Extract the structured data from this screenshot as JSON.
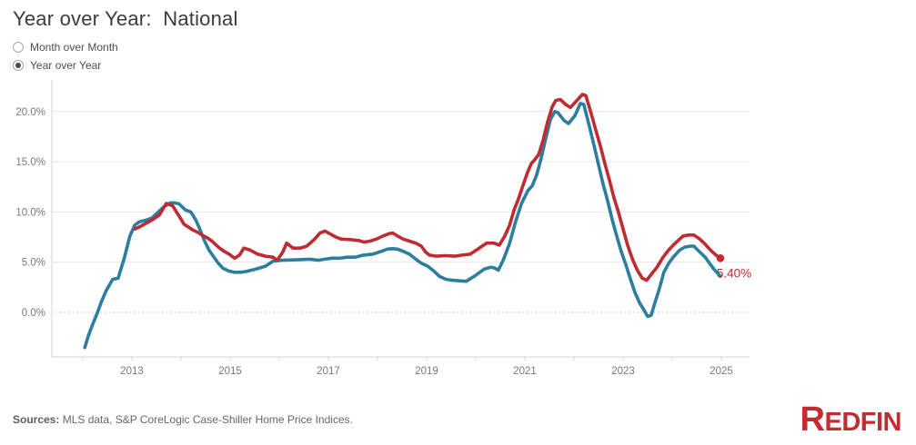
{
  "header": {
    "title": "Year over Year:  National"
  },
  "controls": {
    "radios": [
      {
        "label": "Month over Month",
        "selected": false
      },
      {
        "label": "Year over Year",
        "selected": true
      }
    ]
  },
  "chart_data": {
    "type": "line",
    "title": "Year over Year: National",
    "xlabel": "",
    "ylabel": "",
    "legend": "none",
    "grid": "horizontal",
    "x_axis": {
      "range": [
        2011.37,
        2025.57
      ],
      "labeled_ticks": [
        2013,
        2015,
        2017,
        2019,
        2021,
        2023,
        2025
      ],
      "minor_ticks": [
        2012,
        2013,
        2014,
        2015,
        2016,
        2017,
        2018,
        2019,
        2020,
        2021,
        2022,
        2023,
        2024,
        2025
      ]
    },
    "y_axis": {
      "range": [
        -4.4,
        23.1
      ],
      "tick_values": [
        20,
        15,
        10,
        5,
        0
      ],
      "tick_labels": [
        "20.0%",
        "15.0%",
        "10.0%",
        "5.0%",
        "0.0%"
      ],
      "zero_line_style": "dotted"
    },
    "end_label": {
      "text": "5.40%"
    },
    "colors": {
      "grid": "#e7e7e7",
      "zero_line": "#b9b9b9",
      "axis": "#d4d4d4",
      "tick_label": "#787878"
    },
    "series": [
      {
        "id": "blue-line",
        "color": "#2C7DA0",
        "end_marker": false,
        "points": [
          [
            2012.04,
            -3.5
          ],
          [
            2012.11,
            -2.4
          ],
          [
            2012.2,
            -1.2
          ],
          [
            2012.3,
            0.0
          ],
          [
            2012.39,
            1.2
          ],
          [
            2012.48,
            2.2
          ],
          [
            2012.61,
            3.3
          ],
          [
            2012.72,
            3.4
          ],
          [
            2012.85,
            5.5
          ],
          [
            2012.96,
            7.6
          ],
          [
            2013.06,
            8.7
          ],
          [
            2013.15,
            9.0
          ],
          [
            2013.3,
            9.2
          ],
          [
            2013.41,
            9.4
          ],
          [
            2013.56,
            10.1
          ],
          [
            2013.65,
            10.5
          ],
          [
            2013.78,
            10.9
          ],
          [
            2013.87,
            10.9
          ],
          [
            2013.96,
            10.8
          ],
          [
            2014.09,
            10.2
          ],
          [
            2014.2,
            10.0
          ],
          [
            2014.3,
            9.2
          ],
          [
            2014.39,
            8.2
          ],
          [
            2014.48,
            7.1
          ],
          [
            2014.57,
            6.2
          ],
          [
            2014.67,
            5.5
          ],
          [
            2014.76,
            4.9
          ],
          [
            2014.85,
            4.4
          ],
          [
            2014.98,
            4.1
          ],
          [
            2015.09,
            4.0
          ],
          [
            2015.22,
            4.0
          ],
          [
            2015.35,
            4.1
          ],
          [
            2015.52,
            4.3
          ],
          [
            2015.72,
            4.6
          ],
          [
            2015.87,
            5.1
          ],
          [
            2016.06,
            5.2
          ],
          [
            2016.43,
            5.25
          ],
          [
            2016.61,
            5.3
          ],
          [
            2016.8,
            5.2
          ],
          [
            2016.93,
            5.3
          ],
          [
            2017.07,
            5.4
          ],
          [
            2017.22,
            5.4
          ],
          [
            2017.39,
            5.5
          ],
          [
            2017.54,
            5.5
          ],
          [
            2017.72,
            5.7
          ],
          [
            2017.91,
            5.8
          ],
          [
            2018.09,
            6.1
          ],
          [
            2018.2,
            6.3
          ],
          [
            2018.3,
            6.35
          ],
          [
            2018.41,
            6.3
          ],
          [
            2018.56,
            6.0
          ],
          [
            2018.65,
            5.8
          ],
          [
            2018.78,
            5.3
          ],
          [
            2018.89,
            4.9
          ],
          [
            2019.02,
            4.6
          ],
          [
            2019.15,
            4.1
          ],
          [
            2019.26,
            3.6
          ],
          [
            2019.39,
            3.3
          ],
          [
            2019.52,
            3.2
          ],
          [
            2019.67,
            3.15
          ],
          [
            2019.81,
            3.1
          ],
          [
            2020.0,
            3.7
          ],
          [
            2020.17,
            4.3
          ],
          [
            2020.31,
            4.5
          ],
          [
            2020.39,
            4.4
          ],
          [
            2020.46,
            4.2
          ],
          [
            2020.56,
            5.2
          ],
          [
            2020.69,
            6.9
          ],
          [
            2020.81,
            9.0
          ],
          [
            2020.93,
            10.8
          ],
          [
            2021.06,
            12.1
          ],
          [
            2021.15,
            12.6
          ],
          [
            2021.24,
            13.7
          ],
          [
            2021.33,
            15.3
          ],
          [
            2021.43,
            17.4
          ],
          [
            2021.52,
            19.2
          ],
          [
            2021.61,
            20.0
          ],
          [
            2021.67,
            19.9
          ],
          [
            2021.8,
            19.1
          ],
          [
            2021.89,
            18.8
          ],
          [
            2022.02,
            19.6
          ],
          [
            2022.13,
            20.8
          ],
          [
            2022.2,
            20.7
          ],
          [
            2022.31,
            18.6
          ],
          [
            2022.41,
            16.6
          ],
          [
            2022.5,
            14.7
          ],
          [
            2022.59,
            12.8
          ],
          [
            2022.69,
            11.0
          ],
          [
            2022.78,
            9.2
          ],
          [
            2022.87,
            7.6
          ],
          [
            2022.96,
            6.1
          ],
          [
            2023.06,
            4.7
          ],
          [
            2023.15,
            3.3
          ],
          [
            2023.24,
            2.0
          ],
          [
            2023.33,
            1.0
          ],
          [
            2023.43,
            0.2
          ],
          [
            2023.5,
            -0.4
          ],
          [
            2023.57,
            -0.3
          ],
          [
            2023.65,
            1.0
          ],
          [
            2023.74,
            2.4
          ],
          [
            2023.83,
            4.0
          ],
          [
            2023.93,
            4.9
          ],
          [
            2024.02,
            5.5
          ],
          [
            2024.15,
            6.2
          ],
          [
            2024.26,
            6.5
          ],
          [
            2024.37,
            6.6
          ],
          [
            2024.44,
            6.6
          ],
          [
            2024.54,
            6.1
          ],
          [
            2024.67,
            5.5
          ],
          [
            2024.76,
            4.9
          ],
          [
            2024.85,
            4.3
          ],
          [
            2024.98,
            3.6
          ]
        ]
      },
      {
        "id": "red-line",
        "color": "#C02B31",
        "end_marker": true,
        "points": [
          [
            2013.06,
            8.3
          ],
          [
            2013.15,
            8.5
          ],
          [
            2013.3,
            8.9
          ],
          [
            2013.41,
            9.2
          ],
          [
            2013.56,
            9.7
          ],
          [
            2013.7,
            10.85
          ],
          [
            2013.83,
            10.6
          ],
          [
            2013.96,
            9.6
          ],
          [
            2014.06,
            8.8
          ],
          [
            2014.15,
            8.5
          ],
          [
            2014.24,
            8.2
          ],
          [
            2014.33,
            8.0
          ],
          [
            2014.43,
            7.7
          ],
          [
            2014.54,
            7.4
          ],
          [
            2014.63,
            7.1
          ],
          [
            2014.76,
            6.5
          ],
          [
            2014.87,
            6.1
          ],
          [
            2014.98,
            5.8
          ],
          [
            2015.09,
            5.4
          ],
          [
            2015.19,
            5.7
          ],
          [
            2015.28,
            6.4
          ],
          [
            2015.41,
            6.2
          ],
          [
            2015.56,
            5.8
          ],
          [
            2015.72,
            5.6
          ],
          [
            2015.87,
            5.5
          ],
          [
            2015.96,
            5.2
          ],
          [
            2016.07,
            6.0
          ],
          [
            2016.15,
            6.9
          ],
          [
            2016.28,
            6.4
          ],
          [
            2016.43,
            6.4
          ],
          [
            2016.56,
            6.6
          ],
          [
            2016.7,
            7.2
          ],
          [
            2016.83,
            7.9
          ],
          [
            2016.93,
            8.1
          ],
          [
            2017.04,
            7.8
          ],
          [
            2017.15,
            7.5
          ],
          [
            2017.26,
            7.3
          ],
          [
            2017.44,
            7.25
          ],
          [
            2017.63,
            7.15
          ],
          [
            2017.72,
            7.0
          ],
          [
            2017.85,
            7.1
          ],
          [
            2017.98,
            7.3
          ],
          [
            2018.11,
            7.6
          ],
          [
            2018.24,
            7.85
          ],
          [
            2018.31,
            7.9
          ],
          [
            2018.41,
            7.6
          ],
          [
            2018.52,
            7.3
          ],
          [
            2018.65,
            7.1
          ],
          [
            2018.78,
            6.9
          ],
          [
            2018.89,
            6.6
          ],
          [
            2018.98,
            6.0
          ],
          [
            2019.06,
            5.7
          ],
          [
            2019.2,
            5.6
          ],
          [
            2019.39,
            5.65
          ],
          [
            2019.57,
            5.6
          ],
          [
            2019.72,
            5.7
          ],
          [
            2019.89,
            5.8
          ],
          [
            2020.07,
            6.4
          ],
          [
            2020.22,
            6.9
          ],
          [
            2020.37,
            6.9
          ],
          [
            2020.48,
            6.7
          ],
          [
            2020.59,
            7.6
          ],
          [
            2020.69,
            8.7
          ],
          [
            2020.78,
            10.2
          ],
          [
            2020.87,
            11.3
          ],
          [
            2020.96,
            12.6
          ],
          [
            2021.06,
            14.0
          ],
          [
            2021.13,
            14.8
          ],
          [
            2021.2,
            15.2
          ],
          [
            2021.28,
            15.7
          ],
          [
            2021.37,
            17.1
          ],
          [
            2021.46,
            18.9
          ],
          [
            2021.56,
            20.5
          ],
          [
            2021.63,
            21.1
          ],
          [
            2021.72,
            21.2
          ],
          [
            2021.83,
            20.7
          ],
          [
            2021.93,
            20.4
          ],
          [
            2022.04,
            21.0
          ],
          [
            2022.17,
            21.7
          ],
          [
            2022.24,
            21.6
          ],
          [
            2022.35,
            19.8
          ],
          [
            2022.44,
            18.2
          ],
          [
            2022.54,
            16.5
          ],
          [
            2022.63,
            14.8
          ],
          [
            2022.72,
            13.2
          ],
          [
            2022.81,
            11.5
          ],
          [
            2022.91,
            9.9
          ],
          [
            2023.0,
            8.3
          ],
          [
            2023.09,
            6.7
          ],
          [
            2023.19,
            5.3
          ],
          [
            2023.28,
            4.3
          ],
          [
            2023.39,
            3.4
          ],
          [
            2023.48,
            3.2
          ],
          [
            2023.59,
            3.9
          ],
          [
            2023.69,
            4.5
          ],
          [
            2023.8,
            5.4
          ],
          [
            2023.91,
            6.1
          ],
          [
            2024.02,
            6.7
          ],
          [
            2024.13,
            7.2
          ],
          [
            2024.22,
            7.6
          ],
          [
            2024.33,
            7.7
          ],
          [
            2024.44,
            7.7
          ],
          [
            2024.56,
            7.3
          ],
          [
            2024.67,
            6.8
          ],
          [
            2024.78,
            6.2
          ],
          [
            2024.89,
            5.7
          ],
          [
            2024.98,
            5.4
          ]
        ]
      }
    ]
  },
  "footer": {
    "sources_label": "Sources:",
    "sources_text": " MLS data, S&P CoreLogic Case-Shiller Home Price Indices.",
    "logo_text": "REDFIN"
  },
  "colors": {
    "blue_line": "#2C7DA0",
    "red_line": "#C02B31",
    "logo_red": "#C22D31",
    "title_text": "#3b3b3b"
  }
}
